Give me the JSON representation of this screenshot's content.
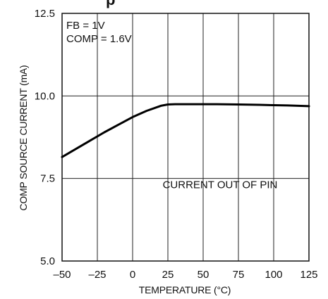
{
  "chart_data": {
    "type": "line",
    "title_fragment": "p",
    "xlabel": "TEMPERATURE (°C)",
    "ylabel": "COMP SOURCE CURRENT (mA)",
    "xlim": [
      -50,
      125
    ],
    "ylim": [
      5.0,
      12.5
    ],
    "x_ticks": [
      -50,
      -25,
      0,
      25,
      50,
      75,
      100,
      125
    ],
    "x_tick_labels": [
      "–50",
      "–25",
      "0",
      "25",
      "50",
      "75",
      "100",
      "125"
    ],
    "y_ticks": [
      5.0,
      7.5,
      10.0,
      12.5
    ],
    "y_tick_labels": [
      "5.0",
      "7.5",
      "10.0",
      "12.5"
    ],
    "grid": true,
    "conditions": [
      "FB = 1V",
      "COMP = 1.6V"
    ],
    "annotation": {
      "text": "CURRENT OUT OF PIN",
      "x": 62,
      "y": 7.2
    },
    "series": [
      {
        "x": [
          -50,
          -40,
          -30,
          -20,
          -10,
          0,
          10,
          20,
          25,
          30,
          40,
          50,
          60,
          75,
          90,
          100,
          110,
          125
        ],
        "values": [
          8.15,
          8.4,
          8.65,
          8.9,
          9.13,
          9.36,
          9.55,
          9.7,
          9.74,
          9.75,
          9.75,
          9.75,
          9.75,
          9.74,
          9.73,
          9.72,
          9.71,
          9.69
        ]
      }
    ]
  }
}
